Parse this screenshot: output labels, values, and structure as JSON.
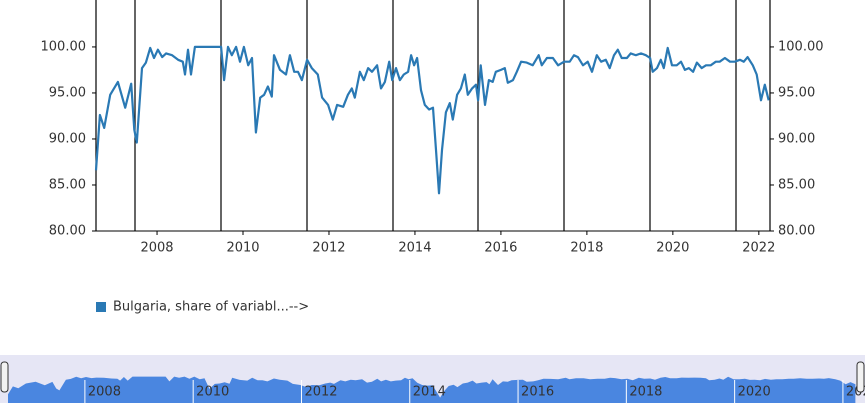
{
  "chart_data": {
    "type": "line",
    "xlim": [
      2006.58,
      2022.26
    ],
    "xticks": [
      2008,
      2010,
      2012,
      2014,
      2016,
      2018,
      2020,
      2022
    ],
    "ylim": [
      80,
      105.1
    ],
    "yticks": [
      {
        "value": 80,
        "label": "80.00"
      },
      {
        "value": 85,
        "label": "85.00"
      },
      {
        "value": 90,
        "label": "90.00"
      },
      {
        "value": 95,
        "label": "95.00"
      },
      {
        "value": 100,
        "label": "100.00"
      }
    ],
    "y2lim": [
      80,
      105.1
    ],
    "y2ticks": [
      {
        "value": 80,
        "label": "80.00"
      },
      {
        "value": 85,
        "label": "85.00"
      },
      {
        "value": 90,
        "label": "90.00"
      },
      {
        "value": 95,
        "label": "95.00"
      },
      {
        "value": 100,
        "label": "100.00"
      }
    ],
    "x": [
      2006.58,
      2006.67,
      2006.77,
      2006.91,
      2007.09,
      2007.26,
      2007.4,
      2007.47,
      2007.53,
      2007.65,
      2007.74,
      2007.84,
      2007.93,
      2008.02,
      2008.12,
      2008.21,
      2008.35,
      2008.49,
      2008.6,
      2008.65,
      2008.72,
      2008.79,
      2008.88,
      2009.49,
      2009.56,
      2009.65,
      2009.74,
      2009.84,
      2009.93,
      2010.02,
      2010.12,
      2010.21,
      2010.3,
      2010.4,
      2010.49,
      2010.58,
      2010.67,
      2010.72,
      2010.86,
      2011.0,
      2011.09,
      2011.19,
      2011.28,
      2011.37,
      2011.49,
      2011.6,
      2011.74,
      2011.84,
      2011.98,
      2012.09,
      2012.19,
      2012.33,
      2012.44,
      2012.53,
      2012.6,
      2012.72,
      2012.81,
      2012.91,
      2013.0,
      2013.12,
      2013.21,
      2013.3,
      2013.4,
      2013.47,
      2013.56,
      2013.65,
      2013.74,
      2013.84,
      2013.91,
      2013.98,
      2014.05,
      2014.14,
      2014.23,
      2014.33,
      2014.42,
      2014.49,
      2014.56,
      2014.63,
      2014.72,
      2014.81,
      2014.88,
      2014.98,
      2015.07,
      2015.16,
      2015.23,
      2015.33,
      2015.42,
      2015.47,
      2015.53,
      2015.63,
      2015.72,
      2015.81,
      2015.88,
      2016.0,
      2016.09,
      2016.16,
      2016.28,
      2016.37,
      2016.47,
      2016.6,
      2016.74,
      2016.88,
      2016.95,
      2017.07,
      2017.21,
      2017.33,
      2017.47,
      2017.6,
      2017.7,
      2017.79,
      2017.91,
      2018.02,
      2018.12,
      2018.23,
      2018.33,
      2018.44,
      2018.53,
      2018.63,
      2018.72,
      2018.81,
      2018.93,
      2019.02,
      2019.14,
      2019.26,
      2019.37,
      2019.47,
      2019.53,
      2019.63,
      2019.72,
      2019.79,
      2019.88,
      2019.98,
      2020.09,
      2020.19,
      2020.28,
      2020.37,
      2020.47,
      2020.56,
      2020.67,
      2020.77,
      2020.88,
      2021.0,
      2021.09,
      2021.21,
      2021.33,
      2021.44,
      2021.56,
      2021.65,
      2021.74,
      2021.86,
      2021.95,
      2022.05,
      2022.14,
      2022.23
    ],
    "series": [
      {
        "name": "Bulgaria, share of variabl...-->",
        "color": "#2a79b4",
        "values": [
          86.6,
          92.6,
          91.2,
          94.8,
          96.2,
          93.4,
          96.0,
          91.0,
          89.6,
          97.7,
          98.3,
          99.9,
          98.8,
          99.7,
          98.9,
          99.3,
          99.1,
          98.6,
          98.4,
          97.0,
          99.7,
          97.0,
          100.0,
          100.0,
          96.4,
          100.0,
          99.1,
          100.0,
          98.4,
          100.0,
          98.0,
          98.8,
          90.7,
          94.5,
          94.8,
          95.7,
          94.6,
          99.1,
          97.5,
          97.0,
          99.1,
          97.3,
          97.3,
          96.4,
          98.6,
          97.7,
          97.0,
          94.5,
          93.7,
          92.1,
          93.7,
          93.5,
          94.8,
          95.5,
          94.5,
          97.3,
          96.4,
          97.7,
          97.3,
          98.0,
          95.5,
          96.2,
          98.4,
          96.4,
          97.7,
          96.4,
          97.0,
          97.3,
          99.1,
          98.0,
          98.8,
          95.3,
          93.7,
          93.2,
          93.4,
          88.8,
          84.1,
          88.8,
          92.9,
          93.9,
          92.1,
          94.8,
          95.5,
          97.0,
          94.8,
          95.5,
          95.9,
          94.2,
          98.0,
          93.7,
          96.4,
          96.2,
          97.3,
          97.5,
          97.7,
          96.1,
          96.4,
          97.3,
          98.4,
          98.3,
          98.0,
          99.1,
          98.0,
          98.8,
          98.8,
          98.0,
          98.4,
          98.4,
          99.1,
          98.9,
          98.0,
          98.4,
          97.3,
          99.1,
          98.4,
          98.6,
          97.7,
          99.1,
          99.7,
          98.8,
          98.8,
          99.3,
          99.1,
          99.3,
          99.1,
          98.8,
          97.3,
          97.7,
          98.6,
          97.7,
          99.9,
          98.0,
          98.0,
          98.4,
          97.5,
          97.7,
          97.3,
          98.3,
          97.7,
          98.0,
          98.0,
          98.4,
          98.4,
          98.8,
          98.4,
          98.4,
          98.6,
          98.4,
          98.9,
          98.0,
          97.0,
          94.2,
          95.9,
          94.2
        ]
      }
    ]
  }
}
